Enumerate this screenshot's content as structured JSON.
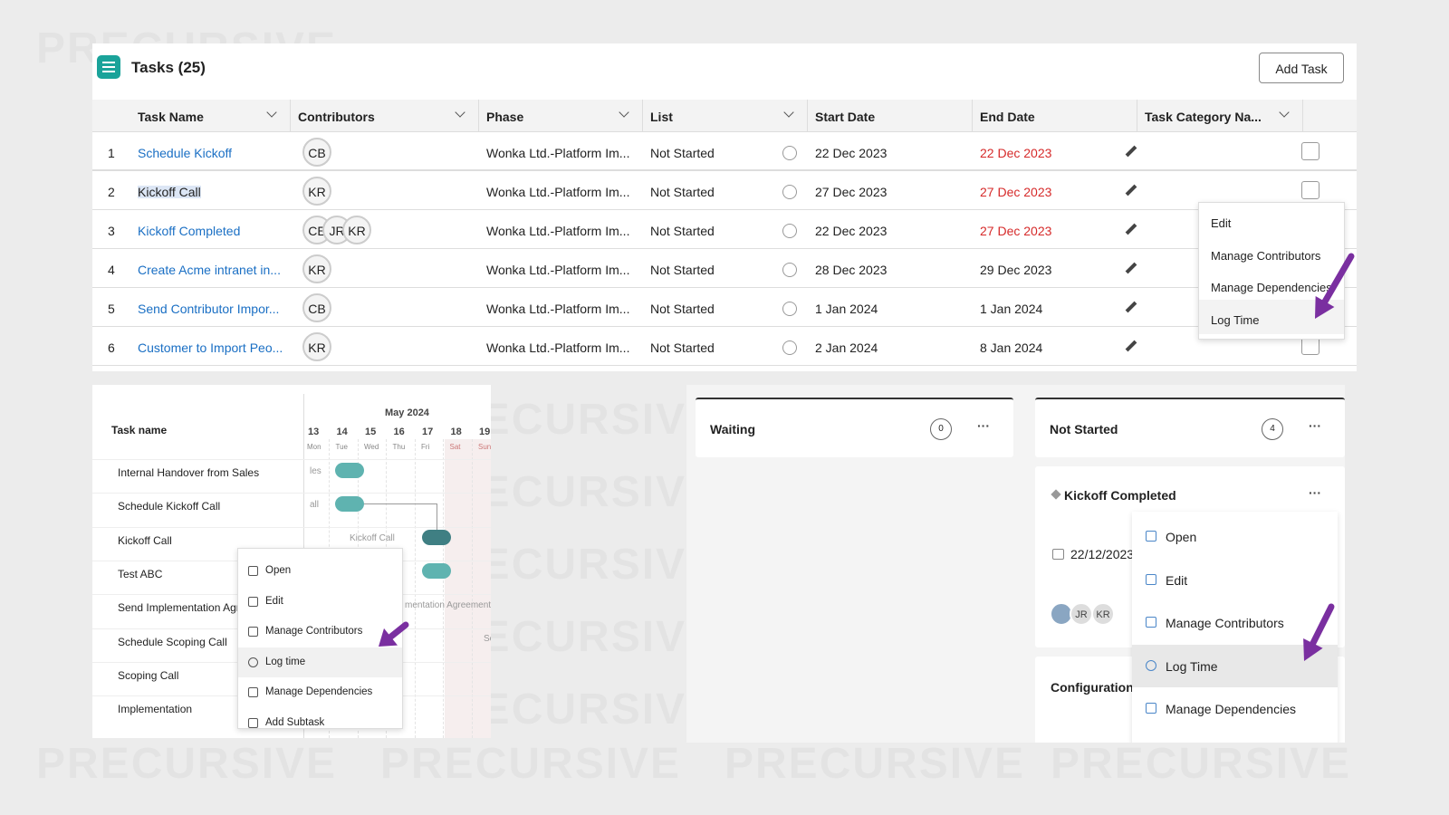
{
  "header": {
    "title": "Tasks (25)",
    "add_button": "Add Task"
  },
  "table": {
    "columns": [
      "Task Name",
      "Contributors",
      "Phase",
      "List",
      "Start Date",
      "End Date",
      "Task Category Na..."
    ],
    "rows": [
      {
        "index": "1",
        "task": "Schedule Kickoff",
        "contributors": [
          "CB"
        ],
        "phase": "Wonka Ltd.-Platform Im...",
        "list": "Not Started",
        "start": "22 Dec 2023",
        "end": "22 Dec 2023",
        "end_overdue": true
      },
      {
        "index": "2",
        "task": "Kickoff Call",
        "contributors": [
          "KR"
        ],
        "phase": "Wonka Ltd.-Platform Im...",
        "list": "Not Started",
        "start": "27 Dec 2023",
        "end": "27 Dec 2023",
        "end_overdue": true,
        "selected": true
      },
      {
        "index": "3",
        "task": "Kickoff Completed",
        "contributors": [
          "CE",
          "JR",
          "KR"
        ],
        "phase": "Wonka Ltd.-Platform Im...",
        "list": "Not Started",
        "start": "22 Dec 2023",
        "end": "27 Dec 2023",
        "end_overdue": true
      },
      {
        "index": "4",
        "task": "Create Acme intranet in...",
        "contributors": [
          "KR"
        ],
        "phase": "Wonka Ltd.-Platform Im...",
        "list": "Not Started",
        "start": "28 Dec 2023",
        "end": "29 Dec 2023",
        "end_overdue": false
      },
      {
        "index": "5",
        "task": "Send Contributor Impor...",
        "contributors": [
          "CB"
        ],
        "phase": "Wonka Ltd.-Platform Im...",
        "list": "Not Started",
        "start": "1 Jan 2024",
        "end": "1 Jan 2024",
        "end_overdue": false
      },
      {
        "index": "6",
        "task": "Customer to Import Peo...",
        "contributors": [
          "KR"
        ],
        "phase": "Wonka Ltd.-Platform Im...",
        "list": "Not Started",
        "start": "2 Jan 2024",
        "end": "8 Jan 2024",
        "end_overdue": false
      }
    ]
  },
  "row_menu": [
    "Edit",
    "Manage Contributors",
    "Manage Dependencies",
    "Log Time"
  ],
  "gantt": {
    "header": "Task name",
    "month": "May 2024",
    "days": [
      {
        "date": "13",
        "weekday": "Mon"
      },
      {
        "date": "14",
        "weekday": "Tue"
      },
      {
        "date": "15",
        "weekday": "Wed"
      },
      {
        "date": "16",
        "weekday": "Thu"
      },
      {
        "date": "17",
        "weekday": "Fri"
      },
      {
        "date": "18",
        "weekday": "Sat"
      },
      {
        "date": "19",
        "weekday": "Sun"
      }
    ],
    "tasks": [
      "Internal Handover from Sales",
      "Schedule Kickoff Call",
      "Kickoff Call",
      "Test ABC",
      "Send Implementation Agreement",
      "Schedule Scoping Call",
      "Scoping Call",
      "Implementation"
    ],
    "bar_labels": [
      "les",
      "all",
      "Kickoff Call",
      "c",
      "mentation Agreement",
      "Sc"
    ],
    "menu": [
      "Open",
      "Edit",
      "Manage Contributors",
      "Log time",
      "Manage Dependencies",
      "Add Subtask"
    ]
  },
  "board": {
    "columns": [
      {
        "name": "Waiting",
        "count": 0
      },
      {
        "name": "Not Started",
        "count": 4
      }
    ],
    "card": {
      "title": "Kickoff Completed",
      "date": "22/12/2023",
      "contributors": [
        "JR",
        "KR"
      ]
    },
    "next_card": "Configuration",
    "menu": [
      "Open",
      "Edit",
      "Manage Contributors",
      "Log Time",
      "Manage Dependencies"
    ]
  },
  "watermark": "PRECURSIVE"
}
